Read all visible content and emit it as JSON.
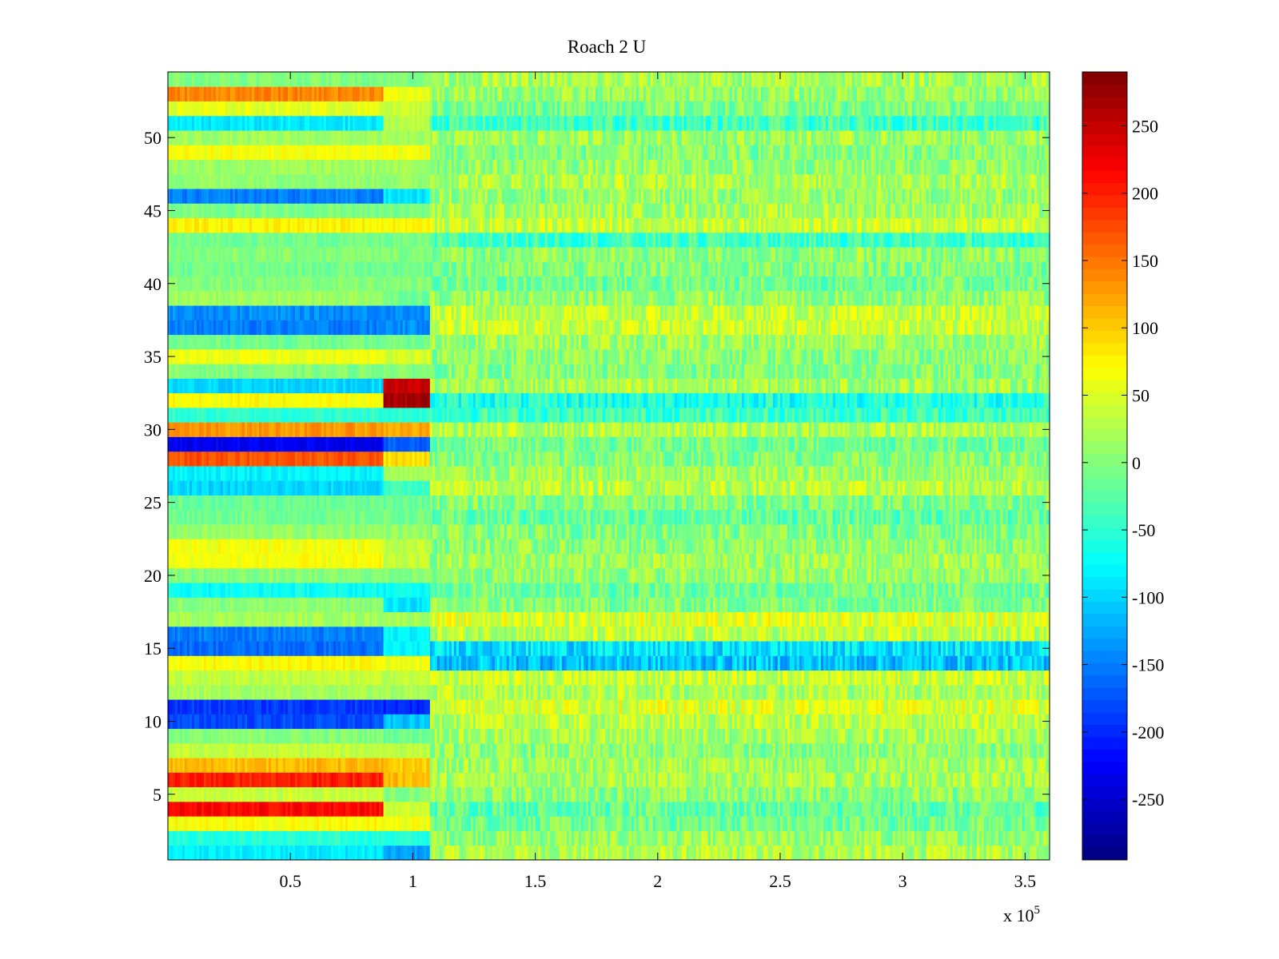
{
  "chart_data": {
    "type": "heatmap",
    "title": "Roach 2 U",
    "xlabel": "",
    "ylabel": "",
    "x_exponent_label": "x 10",
    "x_exponent_power": "5",
    "xlim": [
      0,
      3.6
    ],
    "ylim": [
      0.5,
      54.5
    ],
    "x_ticks": [
      0.5,
      1,
      1.5,
      2,
      2.5,
      3,
      3.5
    ],
    "x_tick_labels": [
      "0.5",
      "1",
      "1.5",
      "2",
      "2.5",
      "3",
      "3.5"
    ],
    "y_ticks": [
      5,
      10,
      15,
      20,
      25,
      30,
      35,
      40,
      45,
      50
    ],
    "y_tick_labels": [
      "5",
      "10",
      "15",
      "20",
      "25",
      "30",
      "35",
      "40",
      "45",
      "50"
    ],
    "colorbar": {
      "colormap": "jet",
      "clim": [
        -295,
        290
      ],
      "ticks": [
        250,
        200,
        150,
        100,
        50,
        0,
        -50,
        -100,
        -150,
        -200,
        -250
      ],
      "tick_labels": [
        "250",
        "200",
        "150",
        "100",
        "50",
        "0",
        "-50",
        "-100",
        "-150",
        "-200",
        "-250"
      ]
    },
    "segment_boundaries_x": [
      0,
      0.88,
      1.07,
      3.6
    ],
    "row_values": {
      "note": "approximate mean value per row (channel 1..54) in each x segment",
      "segment_1": [
        -85,
        -55,
        70,
        215,
        40,
        200,
        110,
        35,
        0,
        -180,
        -190,
        20,
        35,
        70,
        -160,
        -150,
        20,
        5,
        -70,
        0,
        65,
        65,
        10,
        -10,
        -15,
        -100,
        -80,
        170,
        -230,
        130,
        -50,
        70,
        -100,
        0,
        60,
        -10,
        -150,
        -140,
        15,
        0,
        -10,
        0,
        -10,
        75,
        -5,
        -150,
        10,
        15,
        65,
        15,
        -90,
        55,
        140,
        0
      ],
      "segment_2": [
        -130,
        -55,
        65,
        40,
        0,
        110,
        100,
        35,
        -10,
        -110,
        -200,
        20,
        35,
        60,
        -80,
        -80,
        20,
        -90,
        -70,
        0,
        35,
        35,
        10,
        -10,
        -15,
        -40,
        20,
        90,
        -170,
        120,
        -50,
        270,
        250,
        0,
        50,
        -10,
        -140,
        -140,
        -10,
        0,
        -10,
        0,
        -10,
        75,
        -5,
        -90,
        10,
        15,
        65,
        15,
        30,
        40,
        60,
        0
      ],
      "segment_3": [
        25,
        10,
        -10,
        -20,
        5,
        20,
        15,
        5,
        20,
        30,
        50,
        25,
        40,
        -110,
        -90,
        30,
        50,
        0,
        -10,
        10,
        15,
        5,
        0,
        -20,
        0,
        30,
        15,
        0,
        -10,
        25,
        -40,
        -60,
        20,
        0,
        5,
        15,
        40,
        35,
        10,
        -10,
        0,
        5,
        -40,
        40,
        20,
        10,
        25,
        10,
        0,
        15,
        -40,
        -5,
        10,
        20
      ]
    }
  }
}
